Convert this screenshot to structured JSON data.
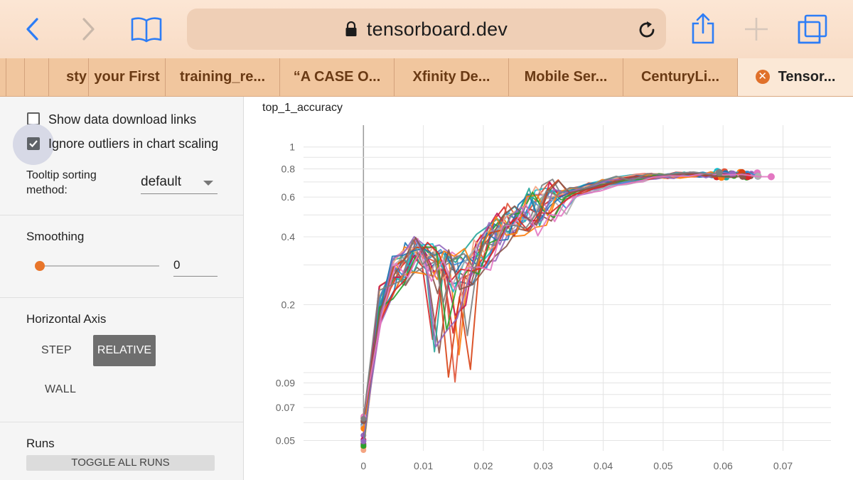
{
  "browser": {
    "address": "tensorboard.dev",
    "back_icon": "chevron-left-icon",
    "forward_icon": "chevron-right-icon",
    "bookmarks_icon": "book-icon",
    "reload_icon": "reload-icon",
    "share_icon": "share-icon",
    "new_tab_icon": "plus-icon",
    "tabs_icon": "tabs-overview-icon",
    "tabs": [
      {
        "label": ""
      },
      {
        "label": ""
      },
      {
        "label": "sty"
      },
      {
        "label": "your First"
      },
      {
        "label": "training_re..."
      },
      {
        "label": "“A CASE O..."
      },
      {
        "label": "Xfinity De..."
      },
      {
        "label": "Mobile Ser..."
      },
      {
        "label": "CenturyLi..."
      },
      {
        "label": "Tensor..."
      }
    ],
    "accent": "#1a73e8"
  },
  "sidebar": {
    "show_download": {
      "label": "Show data download links",
      "checked": false
    },
    "ignore_outliers": {
      "label": "Ignore outliers in chart scaling",
      "checked": true
    },
    "tooltip_sorting": {
      "label_line1": "Tooltip sorting",
      "label_line2": "method:",
      "value": "default"
    },
    "smoothing": {
      "label": "Smoothing",
      "value": "0"
    },
    "horizontal_axis": {
      "label": "Horizontal Axis",
      "options": [
        "STEP",
        "RELATIVE",
        "WALL"
      ],
      "selected": "RELATIVE"
    },
    "runs": {
      "label": "Runs",
      "toggle_all": "TOGGLE ALL RUNS"
    },
    "slider_color": "#e8752a"
  },
  "chart_data": {
    "type": "line",
    "title": "top_1_accuracy",
    "xlabel": "",
    "ylabel": "",
    "x_scale": "linear",
    "y_scale": "log",
    "xlim": [
      -0.01,
      0.078
    ],
    "ylim": [
      0.045,
      1.25
    ],
    "x_ticks": [
      "0",
      "0.01",
      "0.02",
      "0.03",
      "0.04",
      "0.05",
      "0.06",
      "0.07"
    ],
    "y_ticks": [
      "0.05",
      "0.07",
      "0.09",
      "0.2",
      "0.4",
      "0.6",
      "0.8",
      "1"
    ],
    "grid": true,
    "colors": [
      "#1f77b4",
      "#ff7f0e",
      "#2ca02c",
      "#d62728",
      "#9467bd",
      "#8c564b",
      "#e377c2",
      "#7f7f7f",
      "#17becf",
      "#e0553a",
      "#3b8fd6",
      "#c2185b",
      "#26a69a",
      "#f4a582",
      "#b0b0b0",
      "#d84315"
    ],
    "series_base": {
      "x": [
        0,
        0.003,
        0.0055,
        0.0075,
        0.0095,
        0.0115,
        0.0135,
        0.0155,
        0.0175,
        0.0195,
        0.0215,
        0.0235,
        0.0255,
        0.0275,
        0.0295,
        0.0315,
        0.0335,
        0.0355,
        0.0375,
        0.04,
        0.043,
        0.046,
        0.049,
        0.052,
        0.055,
        0.058,
        0.061,
        0.064,
        0.067,
        0.069
      ],
      "y": [
        0.06,
        0.2,
        0.27,
        0.31,
        0.33,
        0.32,
        0.31,
        0.29,
        0.27,
        0.3,
        0.35,
        0.39,
        0.43,
        0.47,
        0.51,
        0.54,
        0.57,
        0.6,
        0.62,
        0.65,
        0.68,
        0.71,
        0.73,
        0.74,
        0.75,
        0.755,
        0.76,
        0.76,
        0.765,
        0.765
      ]
    },
    "series_count": 24
  }
}
